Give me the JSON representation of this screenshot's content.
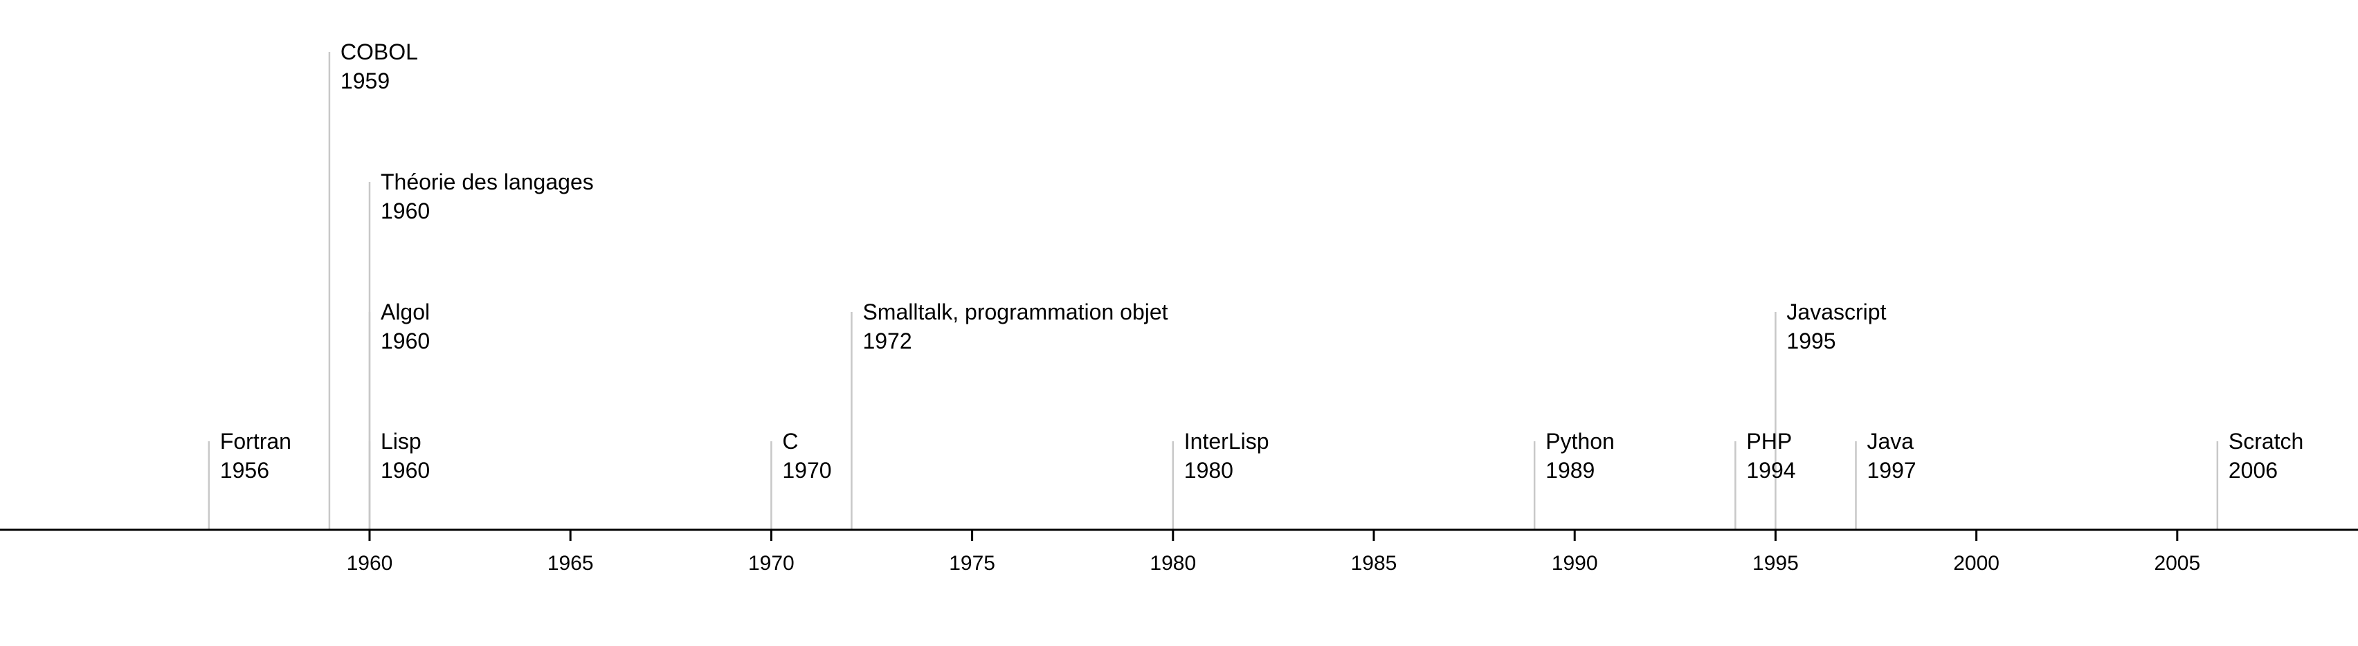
{
  "chart_data": {
    "type": "timeline",
    "title": "",
    "xlabel": "",
    "ylabel": "",
    "xlim": [
      1950.8,
      2009.5
    ],
    "grid": false,
    "x_ticks": [
      1960,
      1965,
      1970,
      1975,
      1980,
      1985,
      1990,
      1995,
      2000,
      2005
    ],
    "events": [
      {
        "name": "Fortran",
        "year": 1956,
        "level": 1
      },
      {
        "name": "COBOL",
        "year": 1959,
        "level": 4
      },
      {
        "name": "Théorie des langages",
        "year": 1960,
        "level": 3
      },
      {
        "name": "Algol",
        "year": 1960,
        "level": 2
      },
      {
        "name": "Lisp",
        "year": 1960,
        "level": 1
      },
      {
        "name": "C",
        "year": 1970,
        "level": 1
      },
      {
        "name": "Smalltalk, programmation objet",
        "year": 1972,
        "level": 2
      },
      {
        "name": "InterLisp",
        "year": 1980,
        "level": 1
      },
      {
        "name": "Python",
        "year": 1989,
        "level": 1
      },
      {
        "name": "PHP",
        "year": 1994,
        "level": 1
      },
      {
        "name": "Javascript",
        "year": 1995,
        "level": 2
      },
      {
        "name": "Java",
        "year": 1997,
        "level": 1
      },
      {
        "name": "Scratch",
        "year": 2006,
        "level": 1
      }
    ]
  }
}
